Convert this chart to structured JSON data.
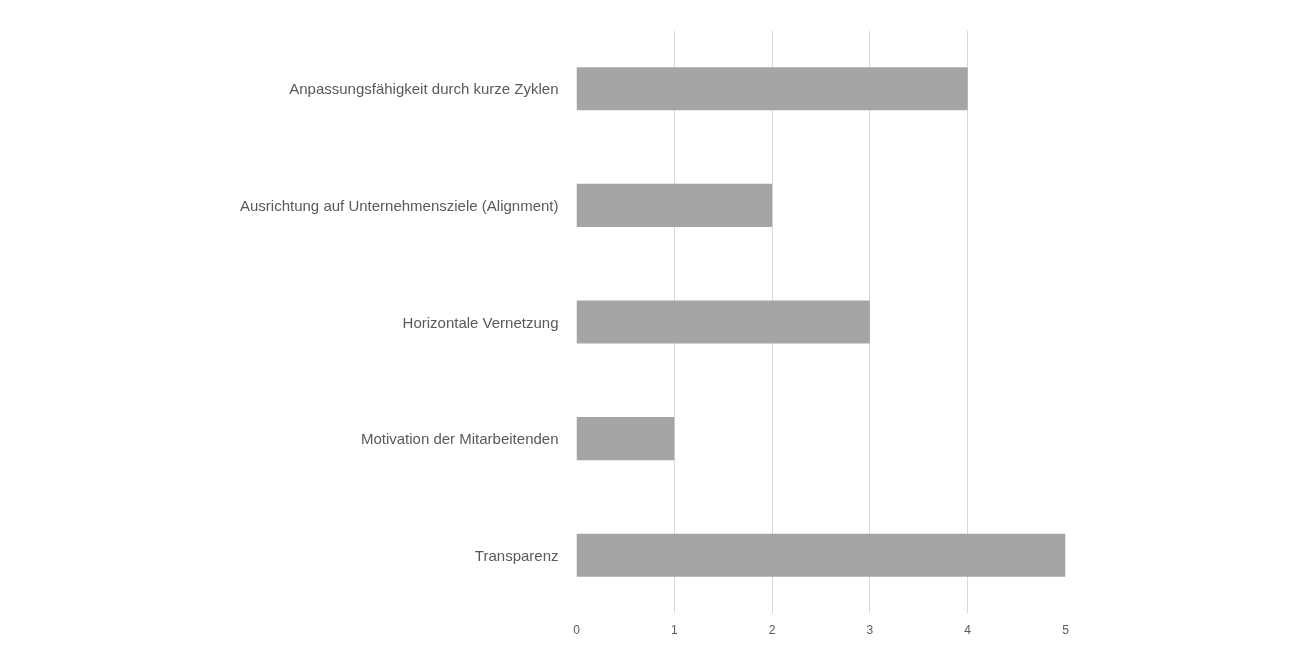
{
  "chart_data": {
    "type": "bar",
    "orientation": "horizontal",
    "categories": [
      "Anpassungsfähigkeit durch kurze Zyklen",
      "Ausrichtung auf Unternehmensziele (Alignment)",
      "Horizontale Vernetzung",
      "Motivation der Mitarbeitenden",
      "Transparenz"
    ],
    "values": [
      4,
      2,
      3,
      1,
      5
    ],
    "color": "#a5a5a5",
    "xlim": [
      0,
      5
    ],
    "xticks": [
      0,
      1,
      2,
      3,
      4,
      5
    ],
    "grid": "x"
  }
}
